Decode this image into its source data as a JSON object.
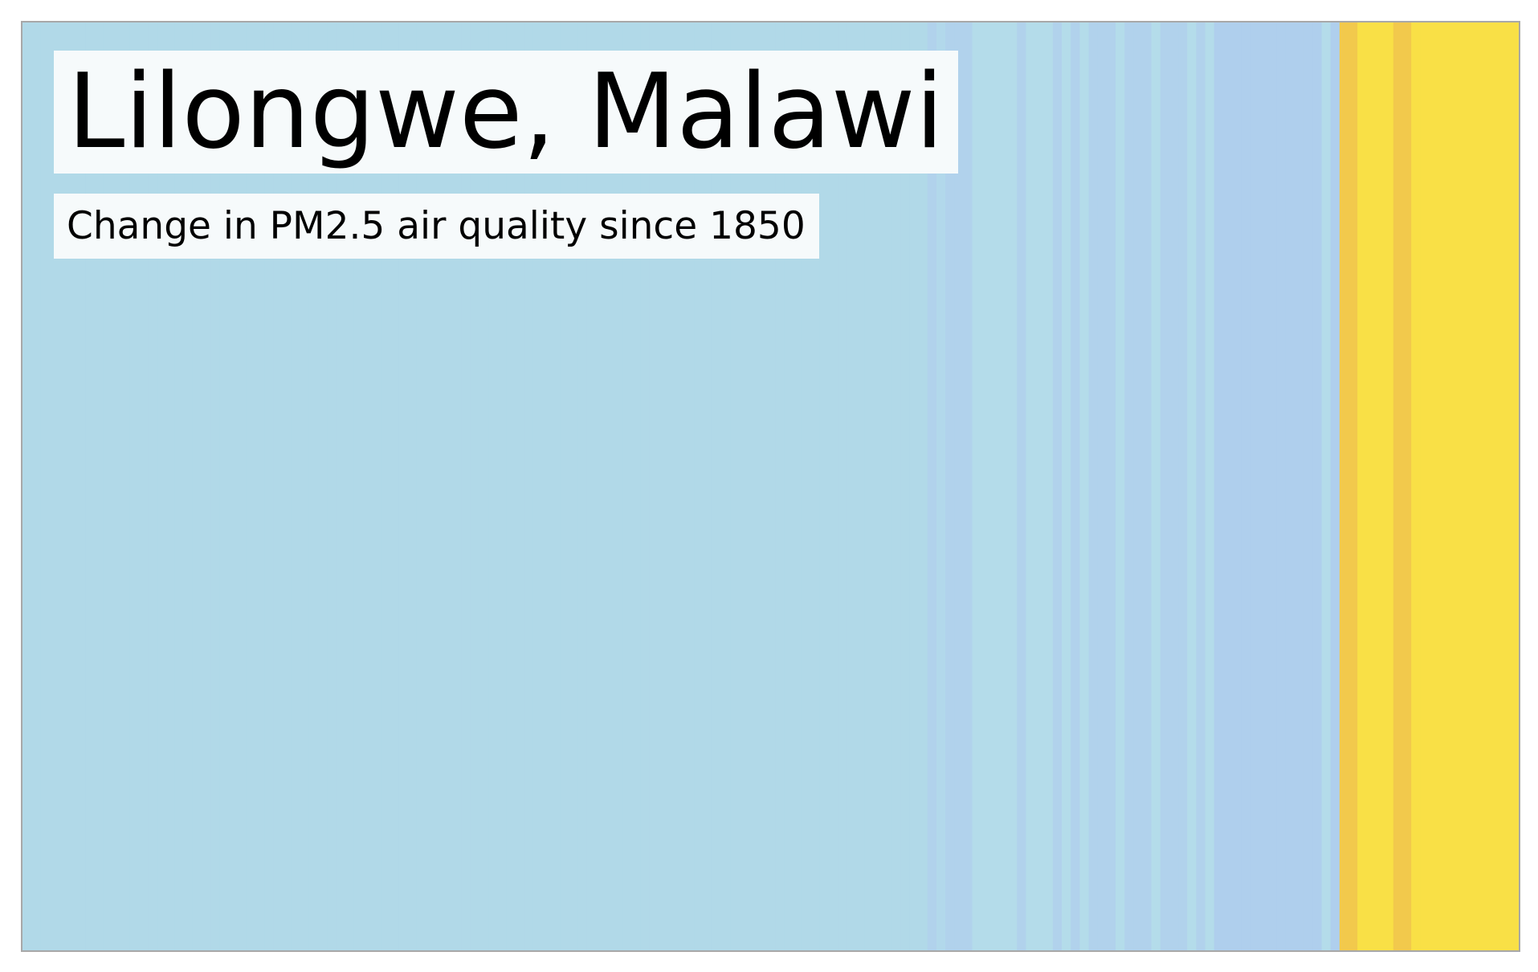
{
  "chart_data": {
    "type": "warming-stripes",
    "title": "Lilongwe, Malawi",
    "subtitle": "Change in PM2.5 air quality since 1850",
    "xlabel": "",
    "ylabel": "",
    "grid": false,
    "legend": "none",
    "colors": {
      "c0": "#b1d9e8",
      "c1": "#b2d8eb",
      "c2": "#b1d2ec",
      "c3": "#afcfed",
      "c4": "#b2daea",
      "c5": "#f2c94c",
      "c6": "#fae244",
      "c7": "#f9e046",
      "c8": "#b4dcea"
    },
    "stripes": [
      "c0",
      "c0",
      "c0",
      "c0",
      "c0",
      "c0",
      "c0",
      "c0",
      "c0",
      "c0",
      "c0",
      "c0",
      "c0",
      "c0",
      "c0",
      "c0",
      "c0",
      "c0",
      "c0",
      "c0",
      "c0",
      "c0",
      "c0",
      "c0",
      "c0",
      "c0",
      "c0",
      "c0",
      "c0",
      "c0",
      "c0",
      "c0",
      "c0",
      "c0",
      "c0",
      "c0",
      "c0",
      "c0",
      "c0",
      "c0",
      "c0",
      "c0",
      "c0",
      "c0",
      "c0",
      "c0",
      "c0",
      "c0",
      "c0",
      "c0",
      "c0",
      "c0",
      "c0",
      "c0",
      "c0",
      "c0",
      "c0",
      "c0",
      "c0",
      "c0",
      "c0",
      "c0",
      "c0",
      "c0",
      "c0",
      "c0",
      "c0",
      "c0",
      "c0",
      "c0",
      "c0",
      "c0",
      "c0",
      "c0",
      "c0",
      "c0",
      "c0",
      "c0",
      "c0",
      "c0",
      "c0",
      "c0",
      "c0",
      "c0",
      "c0",
      "c0",
      "c0",
      "c0",
      "c0",
      "c0",
      "c0",
      "c0",
      "c0",
      "c0",
      "c0",
      "c0",
      "c0",
      "c0",
      "c0",
      "c0",
      "c0",
      "c2",
      "c1",
      "c2",
      "c2",
      "c2",
      "c8",
      "c8",
      "c8",
      "c8",
      "c8",
      "c2",
      "c8",
      "c8",
      "c8",
      "c2",
      "c8",
      "c2",
      "c8",
      "c2",
      "c2",
      "c2",
      "c8",
      "c2",
      "c2",
      "c2",
      "c8",
      "c2",
      "c2",
      "c2",
      "c8",
      "c2",
      "c8",
      "c3",
      "c3",
      "c3",
      "c3",
      "c3",
      "c3",
      "c3",
      "c3",
      "c3",
      "c3",
      "c3",
      "c3",
      "c8",
      "c3",
      "c5",
      "c5",
      "c7",
      "c7",
      "c7",
      "c7",
      "c5",
      "c5",
      "c7",
      "c7",
      "c7",
      "c7",
      "c7",
      "c7",
      "c7",
      "c7",
      "c7",
      "c7",
      "c7",
      "c7"
    ]
  }
}
